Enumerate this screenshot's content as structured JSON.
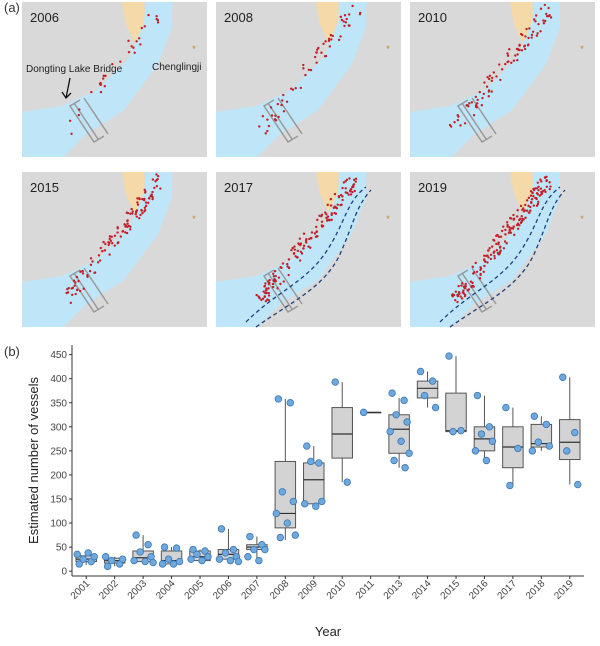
{
  "map_panels": {
    "tag": "(a)",
    "years": [
      "2006",
      "2008",
      "2010",
      "2015",
      "2017",
      "2019"
    ],
    "bridge_label": "Dongting Lake Bridge",
    "town_label": "Chenglingji"
  },
  "chart_data": {
    "type": "box",
    "tag": "(b)",
    "x_label": "Year",
    "y_label": "Estimated number of vessels",
    "categories": [
      "2001",
      "2002",
      "2003",
      "2004",
      "2005",
      "2006",
      "2007",
      "2008",
      "2009",
      "2010",
      "2011",
      "2013",
      "2014",
      "2015",
      "2016",
      "2017",
      "2018",
      "2019"
    ],
    "min": [
      13,
      10,
      18,
      15,
      22,
      20,
      22,
      65,
      135,
      185,
      330,
      215,
      340,
      290,
      230,
      178,
      250,
      180
    ],
    "q1": [
      20,
      17,
      20,
      15,
      22,
      25,
      45,
      90,
      140,
      235,
      330,
      245,
      360,
      290,
      250,
      215,
      258,
      232
    ],
    "median": [
      25,
      22,
      28,
      22,
      30,
      35,
      50,
      120,
      190,
      285,
      330,
      295,
      380,
      292,
      275,
      258,
      265,
      268
    ],
    "q3": [
      32,
      27,
      42,
      42,
      42,
      45,
      55,
      228,
      225,
      340,
      330,
      325,
      395,
      370,
      300,
      300,
      305,
      315
    ],
    "max": [
      38,
      30,
      75,
      50,
      45,
      88,
      72,
      358,
      260,
      393,
      330,
      360,
      415,
      447,
      365,
      340,
      322,
      403
    ],
    "points": [
      [
        15,
        20,
        25,
        30,
        35,
        38
      ],
      [
        10,
        15,
        22,
        25,
        30
      ],
      [
        75,
        55,
        40,
        30,
        22,
        20,
        18
      ],
      [
        50,
        48,
        25,
        20,
        15,
        15
      ],
      [
        45,
        42,
        35,
        30,
        25,
        22
      ],
      [
        88,
        45,
        38,
        30,
        25,
        22,
        20
      ],
      [
        72,
        55,
        45,
        45,
        30,
        22
      ],
      [
        358,
        350,
        165,
        145,
        120,
        100,
        75,
        70
      ],
      [
        260,
        225,
        228,
        145,
        140,
        135
      ],
      [
        393,
        185
      ],
      [
        330
      ],
      [
        370,
        355,
        325,
        310,
        290,
        270,
        245,
        230,
        215
      ],
      [
        415,
        395,
        365,
        340
      ],
      [
        447,
        292,
        290
      ],
      [
        365,
        300,
        285,
        270,
        250,
        230
      ],
      [
        340,
        255,
        178
      ],
      [
        322,
        305,
        268,
        260,
        250
      ],
      [
        403,
        288,
        250,
        180
      ]
    ],
    "box_color": "#d3d3d3",
    "point_color": "#6fa8dc",
    "ylim": [
      -10,
      470
    ],
    "yticks": [
      0,
      50,
      100,
      150,
      200,
      250,
      300,
      350,
      400,
      450
    ]
  }
}
